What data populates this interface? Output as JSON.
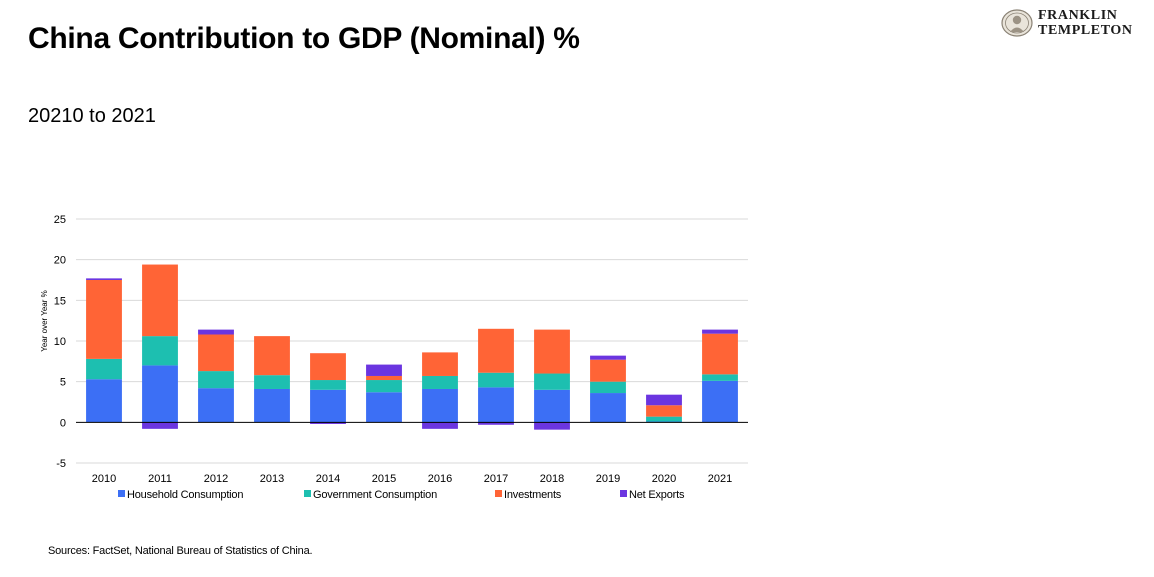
{
  "header": {
    "title": "China Contribution to GDP (Nominal) %",
    "subtitle": "20210 to 2021",
    "logo_line1": "FRANKLIN",
    "logo_line2": "TEMPLETON"
  },
  "footer": {
    "source": "Sources: FactSet, National Bureau of Statistics of China."
  },
  "chart_data": {
    "type": "bar",
    "stacked": true,
    "categories": [
      "2010",
      "2011",
      "2012",
      "2013",
      "2014",
      "2015",
      "2016",
      "2017",
      "2018",
      "2019",
      "2020",
      "2021"
    ],
    "ylabel": "Year over Year %",
    "xlabel": "",
    "ylim": [
      -5,
      25
    ],
    "yticks": [
      -5,
      0,
      5,
      10,
      15,
      20,
      25
    ],
    "grid": true,
    "legend_position": "bottom",
    "series": [
      {
        "name": "Household Consumption",
        "color": "#3c6ff5",
        "values": [
          5.3,
          7.0,
          4.2,
          4.1,
          4.0,
          3.7,
          4.1,
          4.3,
          4.0,
          3.6,
          0.1,
          5.1
        ]
      },
      {
        "name": "Government Consumption",
        "color": "#1dbfb0",
        "values": [
          2.5,
          3.6,
          2.1,
          1.7,
          1.2,
          1.5,
          1.6,
          1.8,
          2.0,
          1.4,
          0.6,
          0.8
        ]
      },
      {
        "name": "Investments",
        "color": "#ff6436",
        "values": [
          9.7,
          8.8,
          4.5,
          4.8,
          3.3,
          0.5,
          2.9,
          5.4,
          5.4,
          2.7,
          1.4,
          5.0
        ]
      },
      {
        "name": "Net Exports",
        "color": "#6b35e0",
        "values": [
          0.2,
          -0.8,
          0.6,
          0.0,
          -0.2,
          1.4,
          -0.8,
          -0.3,
          -0.9,
          0.5,
          1.3,
          0.5
        ]
      }
    ]
  }
}
